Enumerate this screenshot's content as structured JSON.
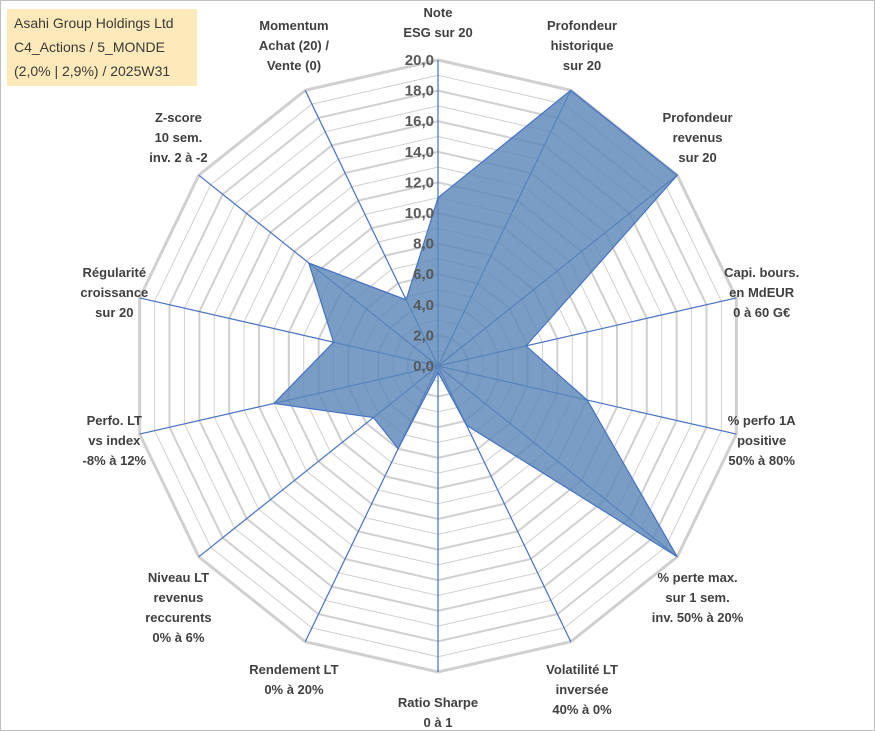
{
  "info": {
    "lines": [
      "Asahi Group Holdings Ltd",
      "C4_Actions / 5_MONDE",
      "(2,0% | 2,9%) / 2025W31"
    ]
  },
  "colors": {
    "fill": "#5b87b8",
    "stroke": "#4472c4",
    "grid": "#d0d0d0",
    "spoke": "#4472c4",
    "info_bg": "#fde9b9"
  },
  "chart_data": {
    "type": "radar",
    "title": "",
    "rmin": 0,
    "rmax": 20,
    "tick_values": [
      0,
      2,
      4,
      6,
      8,
      10,
      12,
      14,
      16,
      18,
      20
    ],
    "tick_labels": [
      "0,0",
      "2,0",
      "4,0",
      "6,0",
      "8,0",
      "10,0",
      "12,0",
      "14,0",
      "16,0",
      "18,0",
      "20,0"
    ],
    "grid": true,
    "axes": [
      {
        "label": [
          "Note",
          "ESG sur 20"
        ],
        "value": 11.0
      },
      {
        "label": [
          "Profondeur",
          "historique",
          "sur 20"
        ],
        "value": 20.0
      },
      {
        "label": [
          "Profondeur",
          "revenus",
          "sur 20"
        ],
        "value": 20.0
      },
      {
        "label": [
          "Capi. bours.",
          "en MdEUR",
          "0 à 60 G€"
        ],
        "value": 5.9
      },
      {
        "label": [
          "% perfo 1A",
          "positive",
          "50% à 80%"
        ],
        "value": 10.0
      },
      {
        "label": [
          "% perte max.",
          "sur 1 sem.",
          "inv. 50% à 20%"
        ],
        "value": 20.0
      },
      {
        "label": [
          "Volatilité LT",
          "inversée",
          "40% à 0%"
        ],
        "value": 4.3
      },
      {
        "label": [
          "Ratio Sharpe",
          "0 à 1"
        ],
        "value": 0.4
      },
      {
        "label": [
          "Rendement LT",
          "0% à 20%"
        ],
        "value": 6.0
      },
      {
        "label": [
          "Niveau LT",
          "revenus",
          "reccurents",
          "0% à 6%"
        ],
        "value": 5.4
      },
      {
        "label": [
          "Perfo. LT",
          "vs index",
          "-8% à 12%"
        ],
        "value": 11.0
      },
      {
        "label": [
          "Régularité",
          "croissance",
          "sur 20"
        ],
        "value": 7.0
      },
      {
        "label": [
          "Z-score",
          "10 sem.",
          "inv. 2 à -2"
        ],
        "value": 10.8
      },
      {
        "label": [
          "Momentum",
          "Achat (20) /",
          "Vente (0)"
        ],
        "value": 4.8
      }
    ]
  }
}
